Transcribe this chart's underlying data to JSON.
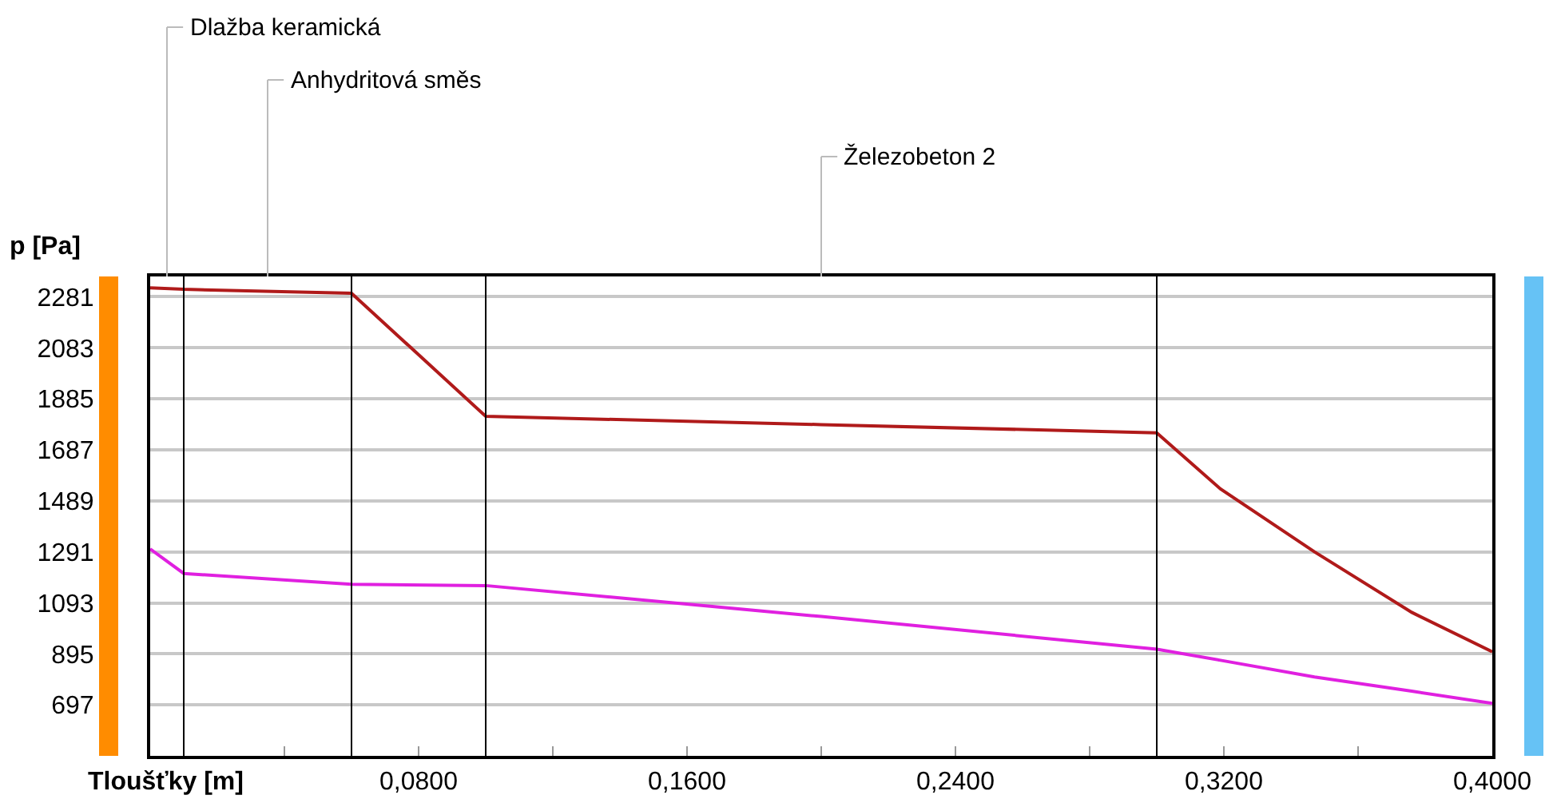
{
  "chart_data": {
    "type": "line",
    "xlabel": "Tloušťky [m]",
    "ylabel": "p [Pa]",
    "x": [
      0,
      0.01,
      0.06,
      0.1,
      0.2,
      0.3,
      0.319,
      0.347,
      0.376,
      0.4
    ],
    "series": [
      {
        "color": "#b01a1a",
        "values": [
          2316,
          2310,
          2295,
          1817,
          1785,
          1753,
          1535,
          1291,
          1056,
          903
        ]
      },
      {
        "color": "#e020e0",
        "values": [
          1302,
          1207,
          1165,
          1160,
          1040,
          913,
          870,
          805,
          750,
          703
        ]
      }
    ],
    "xlim": [
      0,
      0.4
    ],
    "ylim": [
      499,
      2360
    ],
    "xticks": [
      {
        "value": 0.04,
        "label": null
      },
      {
        "value": 0.08,
        "label": "0,0800"
      },
      {
        "value": 0.12,
        "label": null
      },
      {
        "value": 0.16,
        "label": "0,1600"
      },
      {
        "value": 0.2,
        "label": null
      },
      {
        "value": 0.24,
        "label": "0,2400"
      },
      {
        "value": 0.28,
        "label": null
      },
      {
        "value": 0.32,
        "label": "0,3200"
      },
      {
        "value": 0.36,
        "label": null
      },
      {
        "value": 0.4,
        "label": "0,4000"
      }
    ],
    "yticks": [
      697,
      895,
      1093,
      1291,
      1489,
      1687,
      1885,
      2083,
      2281
    ],
    "grid": "y",
    "marker": "none",
    "line_style": "solid",
    "ref_lines": [
      {
        "axis": "x",
        "value": 0.01,
        "color": "#000000"
      },
      {
        "axis": "x",
        "value": 0.06,
        "color": "#000000"
      },
      {
        "axis": "x",
        "value": 0.1,
        "color": "#000000"
      },
      {
        "axis": "x",
        "value": 0.3,
        "color": "#000000"
      }
    ],
    "annotations": [
      "Dlažba keramická",
      "Anhydritová směs",
      "Železobeton 2"
    ]
  }
}
